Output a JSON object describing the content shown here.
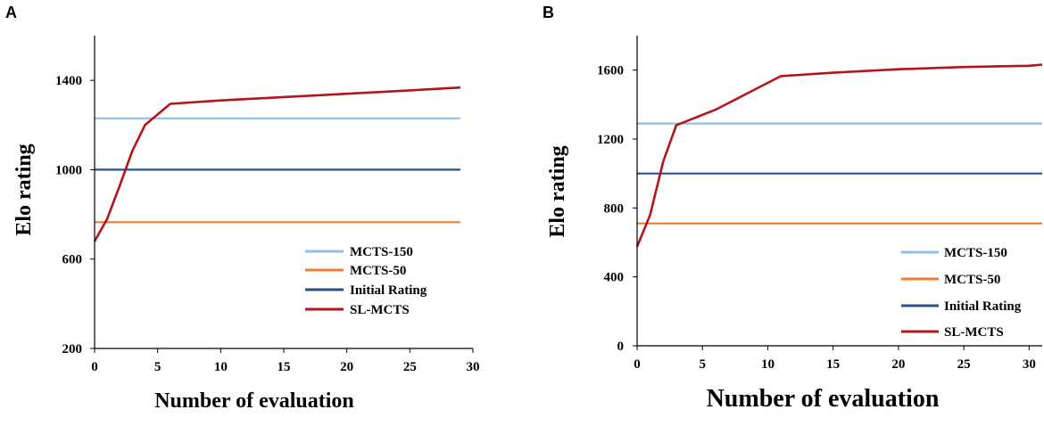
{
  "panels": [
    {
      "letter": "A",
      "chart_data": {
        "type": "line",
        "title": "",
        "xlabel": "Number of  evaluation",
        "ylabel": "Elo rating",
        "xlim": [
          0,
          30
        ],
        "ylim": [
          200,
          1600
        ],
        "x_ticks": [
          0,
          5,
          10,
          15,
          20,
          25,
          30
        ],
        "y_ticks": [
          200,
          600,
          1000,
          1400
        ],
        "legend_position": "bottom-right",
        "series": [
          {
            "name": "MCTS-150",
            "color": "#8dbfe8",
            "x": [
              0,
              29
            ],
            "y": [
              1230,
              1230
            ]
          },
          {
            "name": "MCTS-50",
            "color": "#ee7d31",
            "x": [
              0,
              29
            ],
            "y": [
              765,
              765
            ]
          },
          {
            "name": "Initial Rating",
            "color": "#27508f",
            "x": [
              0,
              29
            ],
            "y": [
              1000,
              1000
            ]
          },
          {
            "name": "SL-MCTS",
            "color": "#b5141c",
            "x": [
              0,
              1,
              2,
              3,
              4,
              6,
              10,
              15,
              20,
              25,
              29
            ],
            "y": [
              680,
              780,
              930,
              1085,
              1200,
              1295,
              1310,
              1325,
              1340,
              1355,
              1368
            ]
          }
        ]
      }
    },
    {
      "letter": "B",
      "chart_data": {
        "type": "line",
        "title": "",
        "xlabel": "Number of evaluation",
        "ylabel": "Elo rating",
        "xlim": [
          0,
          31
        ],
        "ylim": [
          0,
          1800
        ],
        "x_ticks": [
          0,
          5,
          10,
          15,
          20,
          25,
          30
        ],
        "y_ticks": [
          0,
          400,
          800,
          1200,
          1600
        ],
        "legend_position": "bottom-right",
        "series": [
          {
            "name": "MCTS-150",
            "color": "#8dbfe8",
            "x": [
              0,
              31
            ],
            "y": [
              1290,
              1290
            ]
          },
          {
            "name": "MCTS-50",
            "color": "#ee7d31",
            "x": [
              0,
              31
            ],
            "y": [
              710,
              710
            ]
          },
          {
            "name": "Initial Rating",
            "color": "#27508f",
            "x": [
              0,
              31
            ],
            "y": [
              1000,
              1000
            ]
          },
          {
            "name": "SL-MCTS",
            "color": "#b5141c",
            "x": [
              0,
              1,
              2,
              3,
              6,
              11,
              15,
              20,
              25,
              30,
              31
            ],
            "y": [
              575,
              760,
              1070,
              1280,
              1370,
              1565,
              1585,
              1605,
              1618,
              1625,
              1632
            ]
          }
        ]
      }
    }
  ]
}
